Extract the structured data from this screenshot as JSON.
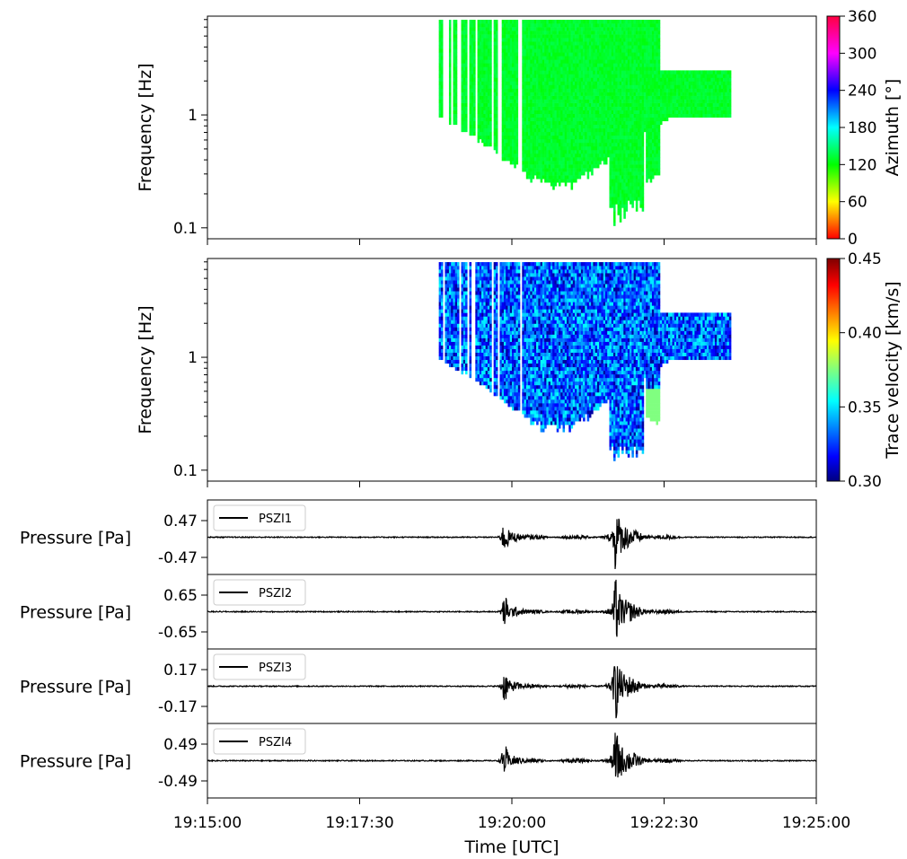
{
  "chart_data": [
    {
      "type": "heatmap",
      "panel": "azimuth",
      "ylabel": "Frequency [Hz]",
      "yscale": "log",
      "ylim": [
        0.08,
        7.5
      ],
      "yticks": [
        "1",
        "0.1"
      ],
      "colorbar": {
        "label": "Azimuth [°]",
        "range": [
          0,
          360
        ],
        "ticks": [
          "360",
          "300",
          "240",
          "180",
          "120",
          "60",
          "0"
        ],
        "colormap": "hsv"
      },
      "data_extent": {
        "time_start": "19:18:48",
        "time_end": "19:23:35",
        "freq_min": 0.09,
        "freq_max": 7.5
      },
      "dominant_value": 130,
      "value_range": [
        115,
        140
      ]
    },
    {
      "type": "heatmap",
      "panel": "trace_velocity",
      "ylabel": "Frequency [Hz]",
      "yscale": "log",
      "ylim": [
        0.08,
        7.5
      ],
      "yticks": [
        "1",
        "0.1"
      ],
      "colorbar": {
        "label": "Trace velocity [km/s]",
        "range": [
          0.3,
          0.45
        ],
        "ticks": [
          "0.45",
          "0.40",
          "0.35",
          "0.30"
        ],
        "colormap": "jet"
      },
      "data_extent": {
        "time_start": "19:18:48",
        "time_end": "19:23:35",
        "freq_min": 0.09,
        "freq_max": 7.5
      },
      "dominant_value": 0.335,
      "value_range": [
        0.305,
        0.38
      ]
    },
    {
      "type": "line",
      "panel": "waveform",
      "series": [
        {
          "name": "PSZI1"
        }
      ],
      "ylabel": "Pressure [Pa]",
      "ylim": [
        -0.47,
        0.47
      ],
      "yticks": [
        "0.47",
        "-0.47"
      ],
      "events": [
        {
          "time": "19:19:53",
          "peak_amplitude": 0.2
        },
        {
          "time": "19:21:42",
          "peak_amplitude": 0.47
        }
      ]
    },
    {
      "type": "line",
      "panel": "waveform",
      "series": [
        {
          "name": "PSZI2"
        }
      ],
      "ylabel": "Pressure [Pa]",
      "ylim": [
        -0.65,
        0.65
      ],
      "yticks": [
        "0.65",
        "-0.65"
      ],
      "events": [
        {
          "time": "19:19:53",
          "peak_amplitude": 0.27
        },
        {
          "time": "19:21:42",
          "peak_amplitude": 0.65
        }
      ]
    },
    {
      "type": "line",
      "panel": "waveform",
      "series": [
        {
          "name": "PSZI3"
        }
      ],
      "ylabel": "Pressure [Pa]",
      "ylim": [
        -0.17,
        0.17
      ],
      "yticks": [
        "0.17",
        "-0.17"
      ],
      "events": [
        {
          "time": "19:19:53",
          "peak_amplitude": 0.07
        },
        {
          "time": "19:21:42",
          "peak_amplitude": 0.17
        }
      ]
    },
    {
      "type": "line",
      "panel": "waveform",
      "series": [
        {
          "name": "PSZI4"
        }
      ],
      "ylabel": "Pressure [Pa]",
      "ylim": [
        -0.49,
        0.49
      ],
      "yticks": [
        "0.49",
        "-0.49"
      ],
      "events": [
        {
          "time": "19:19:53",
          "peak_amplitude": 0.2
        },
        {
          "time": "19:21:42",
          "peak_amplitude": 0.49
        }
      ]
    }
  ],
  "xaxis": {
    "label": "Time [UTC]",
    "ticks": [
      "19:15:00",
      "19:17:30",
      "19:20:00",
      "19:22:30",
      "19:25:00"
    ],
    "range": [
      "19:15:00",
      "19:25:00"
    ]
  }
}
